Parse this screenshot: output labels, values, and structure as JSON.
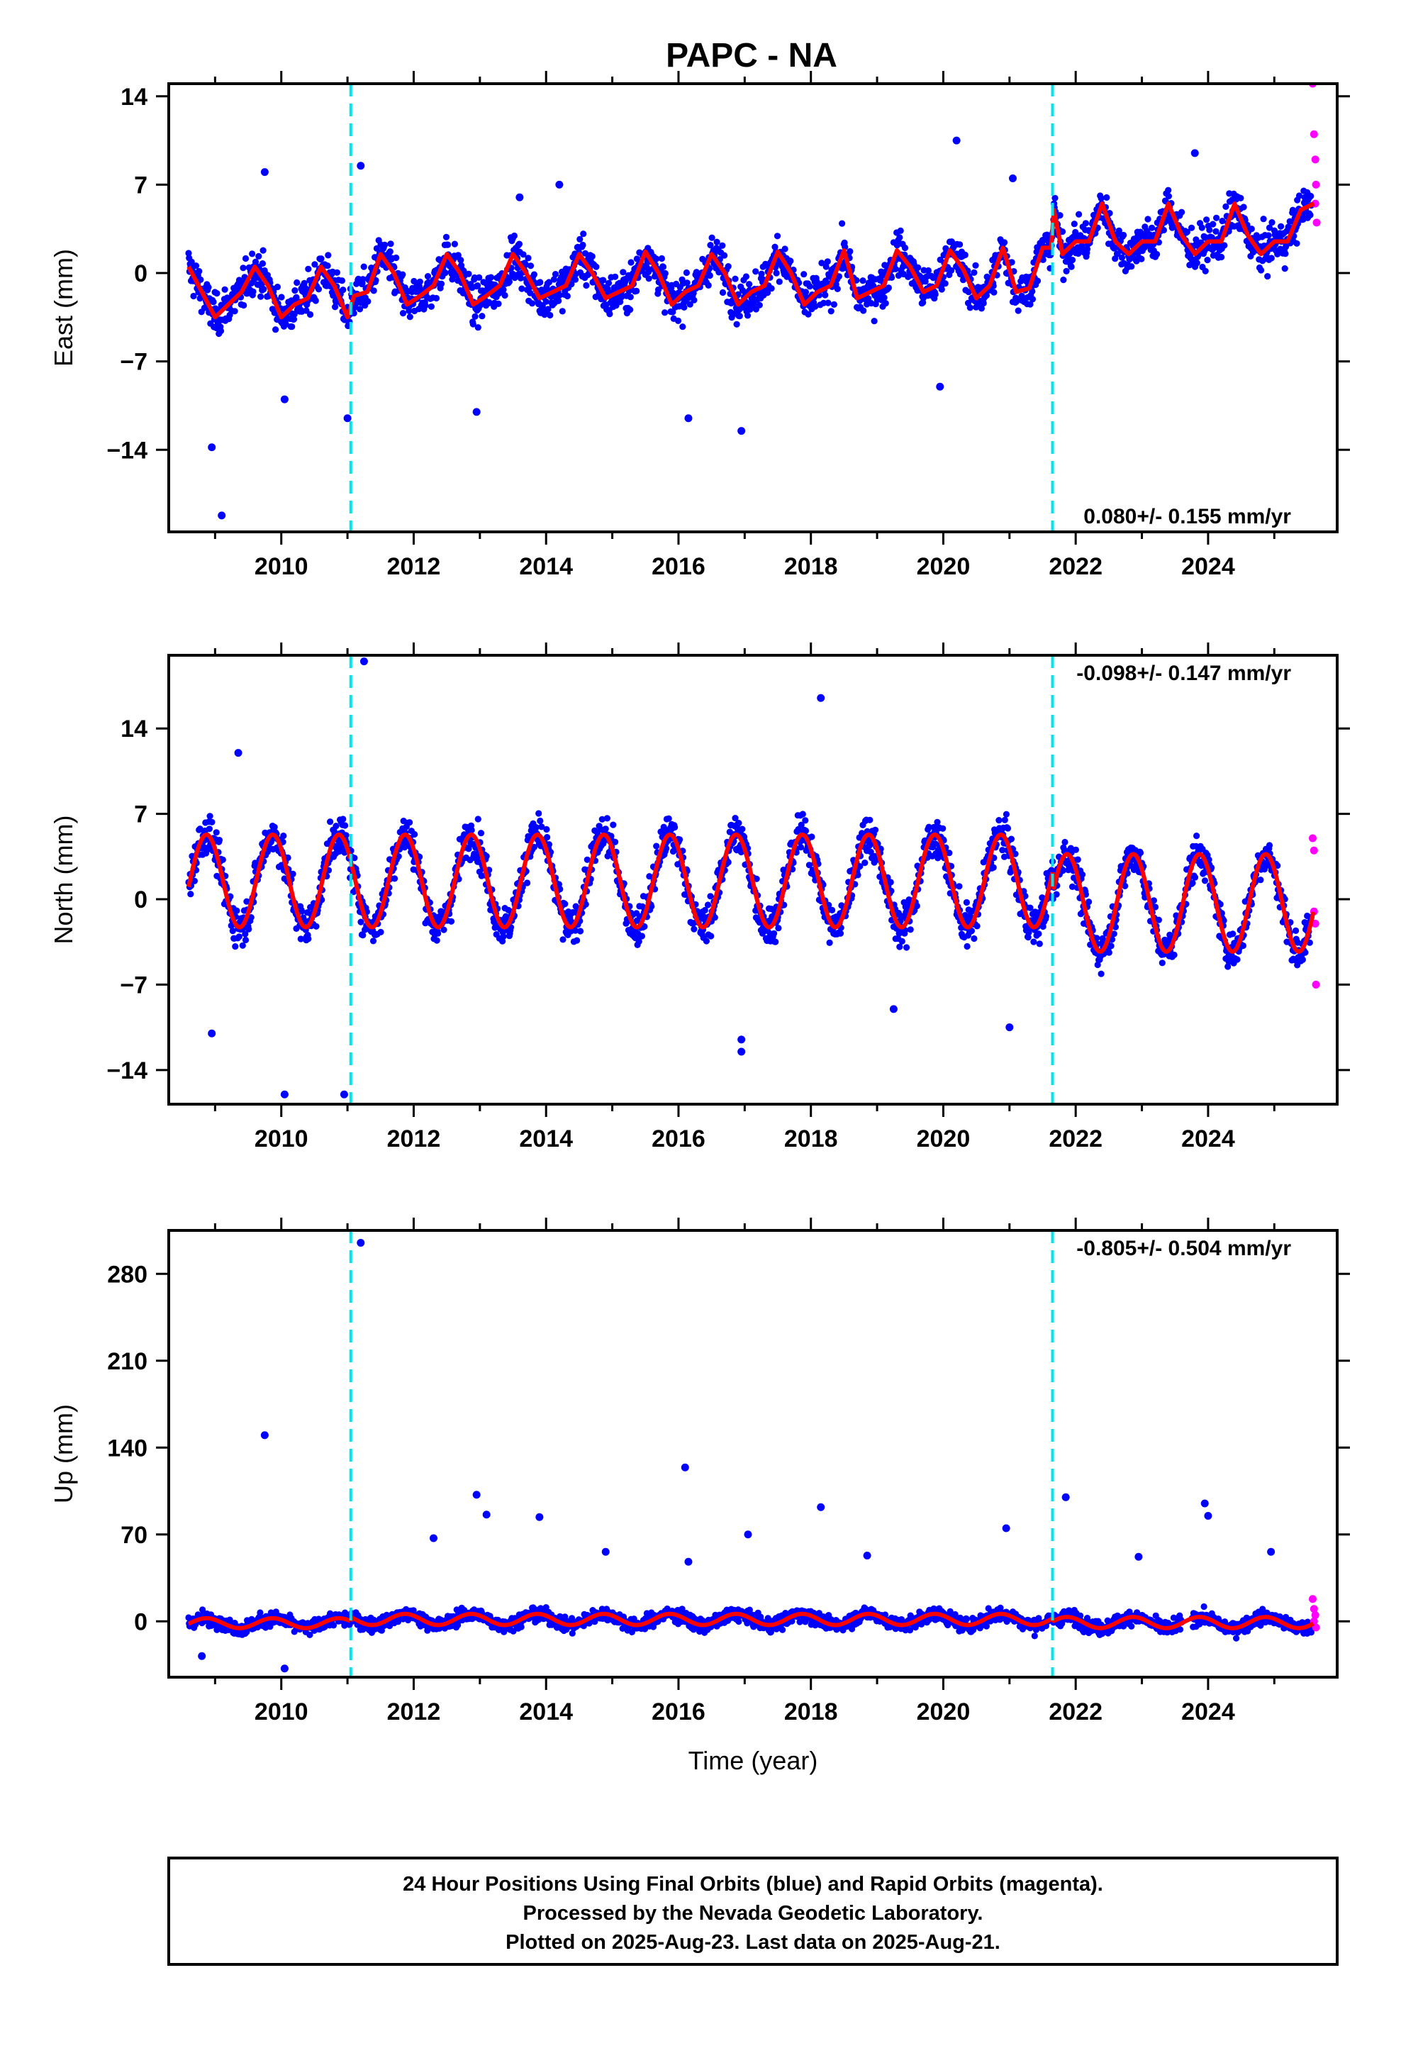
{
  "title": "PAPC - NA",
  "colors": {
    "final_orbits": "#0000ff",
    "rapid_orbits": "#ff00ff",
    "model": "#ff0000",
    "event_lines": "#00e5ee",
    "frame": "#000000"
  },
  "chart_data": [
    {
      "type": "scatter",
      "component": "east",
      "ylabel": "East (mm)",
      "xlim": [
        2008.3,
        2025.95
      ],
      "ylim": [
        -20.5,
        15
      ],
      "yticks": [
        14,
        7,
        0,
        -7,
        -14
      ],
      "xticks": [
        2010,
        2012,
        2014,
        2016,
        2018,
        2020,
        2022,
        2024
      ],
      "rate_label": "0.080+/- 0.155 mm/yr",
      "rate_position": "bottom-right",
      "event_lines": [
        2011.05,
        2021.65
      ],
      "series": [
        {
          "role": "model",
          "x": [
            2008.6,
            2008.8,
            2009.0,
            2009.2,
            2009.4,
            2009.6,
            2009.8,
            2010.0,
            2010.2,
            2010.4,
            2010.6,
            2010.8,
            2011.0,
            2011.1,
            2011.3,
            2011.5,
            2011.7,
            2011.9,
            2012.1,
            2012.3,
            2012.5,
            2012.7,
            2012.9,
            2013.1,
            2013.3,
            2013.5,
            2013.7,
            2013.9,
            2014.1,
            2014.3,
            2014.5,
            2014.7,
            2014.9,
            2015.1,
            2015.3,
            2015.5,
            2015.7,
            2015.9,
            2016.1,
            2016.3,
            2016.5,
            2016.7,
            2016.9,
            2017.1,
            2017.3,
            2017.5,
            2017.7,
            2017.9,
            2018.1,
            2018.3,
            2018.5,
            2018.7,
            2018.9,
            2019.1,
            2019.3,
            2019.5,
            2019.7,
            2019.9,
            2020.1,
            2020.3,
            2020.5,
            2020.7,
            2020.9,
            2021.1,
            2021.3,
            2021.5,
            2021.63,
            2021.67,
            2021.8,
            2022.0,
            2022.2,
            2022.4,
            2022.6,
            2022.8,
            2023.0,
            2023.2,
            2023.4,
            2023.6,
            2023.8,
            2024.0,
            2024.2,
            2024.4,
            2024.6,
            2024.8,
            2025.0,
            2025.2,
            2025.4,
            2025.6
          ],
          "y": [
            0.5,
            -1.5,
            -3.5,
            -2.5,
            -1.5,
            0.5,
            -1.0,
            -3.5,
            -2.5,
            -2.0,
            0.5,
            -1.0,
            -3.5,
            -1.8,
            -1.5,
            1.5,
            0.0,
            -2.5,
            -1.8,
            -1.0,
            1.5,
            0.0,
            -2.5,
            -1.8,
            -1.0,
            1.5,
            0.0,
            -2.0,
            -1.5,
            -1.0,
            1.5,
            0.0,
            -2.0,
            -1.5,
            -1.0,
            1.7,
            0.0,
            -2.5,
            -1.5,
            -1.0,
            1.5,
            0.0,
            -2.5,
            -1.5,
            -1.0,
            1.7,
            0.0,
            -2.5,
            -1.5,
            -1.0,
            1.8,
            -2.0,
            -1.5,
            -1.0,
            1.8,
            0.5,
            -1.5,
            -1.0,
            1.8,
            0.3,
            -2.0,
            -1.0,
            2.0,
            -1.5,
            -1.2,
            2.0,
            2.0,
            5.0,
            1.5,
            2.5,
            2.5,
            5.5,
            2.5,
            1.5,
            2.5,
            2.5,
            5.5,
            3.0,
            1.5,
            2.5,
            2.5,
            5.5,
            3.0,
            1.5,
            2.5,
            2.5,
            5.0,
            5.5
          ]
        },
        {
          "role": "outliers",
          "x": [
            2008.95,
            2009.1,
            2009.75,
            2010.05,
            2011.0,
            2011.2,
            2012.95,
            2013.6,
            2014.2,
            2016.15,
            2016.95,
            2019.95,
            2020.2,
            2021.05,
            2023.8
          ],
          "y": [
            -13.8,
            -19.2,
            8.0,
            -10.0,
            -11.5,
            8.5,
            -11.0,
            6.0,
            7.0,
            -11.5,
            -12.5,
            -9.0,
            10.5,
            7.5,
            9.5
          ]
        },
        {
          "role": "rapid_orbits",
          "x": [
            2025.58,
            2025.6,
            2025.62,
            2025.63,
            2025.64,
            2025.62
          ],
          "y": [
            15.0,
            11.0,
            9.0,
            7.0,
            4.0,
            5.5
          ]
        }
      ]
    },
    {
      "type": "scatter",
      "component": "north",
      "ylabel": "North (mm)",
      "xlim": [
        2008.3,
        2025.95
      ],
      "ylim": [
        -16.8,
        20
      ],
      "yticks": [
        14,
        7,
        0,
        -7,
        -14
      ],
      "xticks": [
        2010,
        2012,
        2014,
        2016,
        2018,
        2020,
        2022,
        2024
      ],
      "rate_label": "-0.098+/- 0.147 mm/yr",
      "rate_position": "top-right",
      "event_lines": [
        2011.05,
        2021.65
      ],
      "series": [
        {
          "role": "model",
          "phase": 0.62,
          "segments": [
            {
              "start": 2008.6,
              "end": 2011.05,
              "offset": 1.5,
              "amp": 3.8
            },
            {
              "start": 2011.05,
              "end": 2021.65,
              "offset": 1.5,
              "amp": 3.8
            },
            {
              "start": 2021.65,
              "end": 2025.6,
              "offset": -0.3,
              "amp": 4.0
            }
          ]
        },
        {
          "role": "outliers",
          "x": [
            2009.35,
            2008.95,
            2010.05,
            2010.95,
            2011.25,
            2018.15,
            2016.95,
            2016.95,
            2019.25,
            2021.0
          ],
          "y": [
            12.0,
            -11.0,
            -16.0,
            -16.0,
            19.5,
            16.5,
            -12.5,
            -11.5,
            -9.0,
            -10.5
          ]
        },
        {
          "role": "rapid_orbits",
          "x": [
            2025.58,
            2025.6,
            2025.62,
            2025.63,
            2025.6
          ],
          "y": [
            5.0,
            4.0,
            -2.0,
            -7.0,
            -1.0
          ]
        }
      ]
    },
    {
      "type": "scatter",
      "component": "up",
      "ylabel": "Up (mm)",
      "xlabel": "Time (year)",
      "xlim": [
        2008.3,
        2025.95
      ],
      "ylim": [
        -45,
        315
      ],
      "yticks": [
        280,
        210,
        140,
        70,
        0
      ],
      "xticks": [
        2010,
        2012,
        2014,
        2016,
        2018,
        2020,
        2022,
        2024
      ],
      "rate_label": "-0.805+/- 0.504 mm/yr",
      "rate_position": "top-right",
      "event_lines": [
        2011.05,
        2021.65
      ],
      "series": [
        {
          "role": "model",
          "phase": 0.62,
          "segments": [
            {
              "start": 2008.6,
              "end": 2011.05,
              "offset": -1.5,
              "amp": 4.0
            },
            {
              "start": 2011.05,
              "end": 2021.65,
              "offset": 1.5,
              "amp": 4.5
            },
            {
              "start": 2021.65,
              "end": 2025.6,
              "offset": -1.0,
              "amp": 4.5
            }
          ]
        },
        {
          "role": "outliers",
          "x": [
            2009.75,
            2011.2,
            2012.3,
            2012.95,
            2013.1,
            2013.9,
            2014.9,
            2016.1,
            2016.15,
            2017.05,
            2018.15,
            2018.85,
            2020.95,
            2021.85,
            2022.95,
            2023.95,
            2024.0,
            2024.95,
            2010.05,
            2008.8
          ],
          "y": [
            150,
            305,
            67,
            102,
            86,
            84,
            56,
            124,
            48,
            70,
            92,
            53,
            75,
            100,
            52,
            95,
            85,
            56,
            -38,
            -28
          ]
        },
        {
          "role": "rapid_orbits",
          "x": [
            2025.58,
            2025.6,
            2025.62,
            2025.63,
            2025.6
          ],
          "y": [
            18,
            10,
            5,
            -5,
            0
          ]
        }
      ]
    }
  ],
  "footer": {
    "line1": "24 Hour Positions Using Final Orbits (blue) and Rapid Orbits (magenta).",
    "line2": "Processed by the Nevada Geodetic Laboratory.",
    "line3": "Plotted on 2025-Aug-23. Last data on 2025-Aug-21."
  }
}
